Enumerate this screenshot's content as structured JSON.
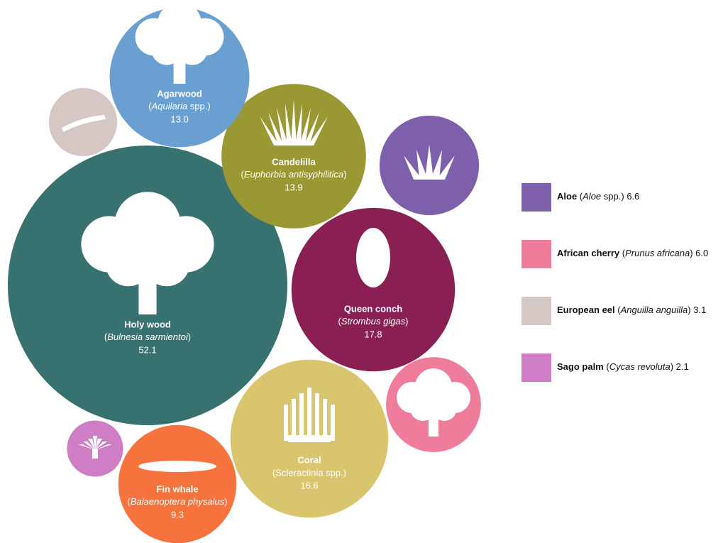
{
  "chart_data": {
    "type": "bubble",
    "items": [
      {
        "name": "Holy wood",
        "scientific": "(Bulnesia sarmientoi)",
        "italic": "Bulnesia sarmientoi",
        "value": 52.1,
        "color": "#387270",
        "legend": false
      },
      {
        "name": "Queen conch",
        "scientific": "(Strombus gigas)",
        "italic": "Strombus gigas",
        "value": 17.8,
        "color": "#891f53",
        "legend": false
      },
      {
        "name": "Coral",
        "scientific": "(Scleractinia spp.)",
        "value": 16.6,
        "color": "#d9c56e",
        "legend": false
      },
      {
        "name": "Candelilla",
        "scientific": "(Euphorbia antisyphilitica)",
        "italic": "Euphorbia antisyphilitica",
        "value": 13.9,
        "color": "#9a9833",
        "legend": false
      },
      {
        "name": "Agarwood",
        "scientific": "(Aquilaria spp.)",
        "italic": "Aquilaria",
        "value": 13,
        "value_label": "13.0",
        "color": "#699fd1",
        "legend": false
      },
      {
        "name": "Fin whale",
        "scientific": "(Balaenoptera physalus)",
        "italic": "Balaenoptera physalus",
        "value": 9.3,
        "color": "#f6733e",
        "legend": false
      },
      {
        "name": "Aloe",
        "scientific": "(Aloe spp.)",
        "italic": "Aloe",
        "value": 6.6,
        "color": "#7d5fab",
        "legend": true
      },
      {
        "name": "African cherry",
        "scientific": "(Prunus africana)",
        "italic": "Prunus africana",
        "value": 6,
        "value_label": "6.0",
        "color": "#f07c9c",
        "legend": true
      },
      {
        "name": "European eel",
        "scientific": "(Anguilla anguilla)",
        "italic": "Anguilla anguilla",
        "value": 3.1,
        "color": "#d5c7c3",
        "legend": true
      },
      {
        "name": "Sago palm",
        "scientific": "(Cycas revoluta)",
        "italic": "Cycas revoluta",
        "value": 2.1,
        "color": "#cf7dc5",
        "legend": true
      }
    ]
  }
}
